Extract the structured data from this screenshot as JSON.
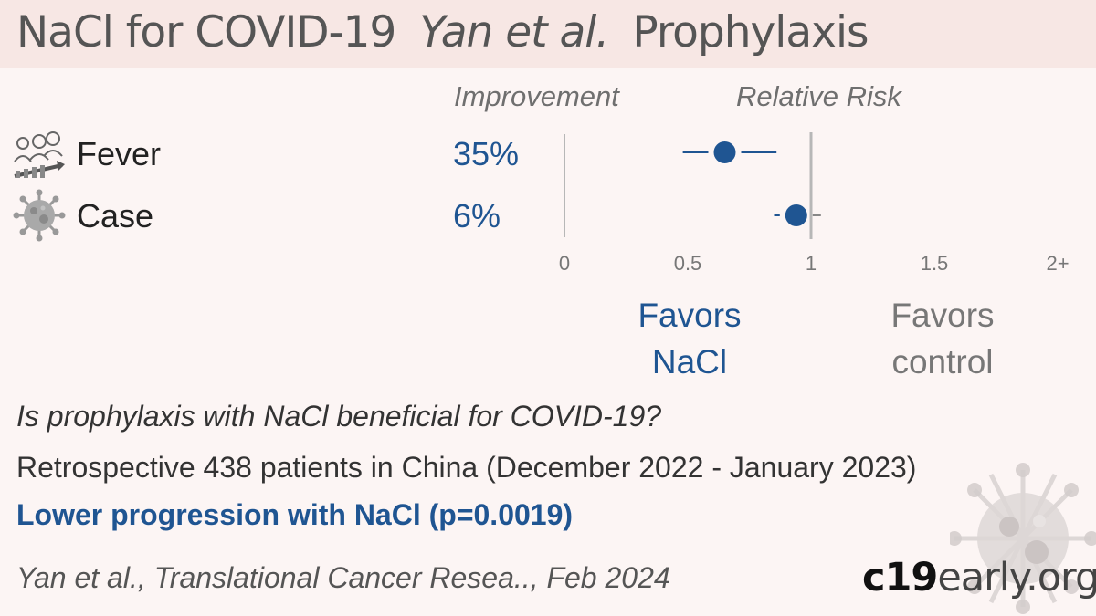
{
  "header": {
    "title": "NaCl for COVID-19",
    "authors": "Yan et al.",
    "setting": "Prophylaxis"
  },
  "columns": {
    "improvement": "Improvement",
    "relative_risk": "Relative Risk"
  },
  "chart_data": {
    "type": "forest",
    "title": "",
    "xlabel": "Relative Risk",
    "xlim": [
      0,
      2
    ],
    "x_ticks": [
      "0",
      "0.5",
      "1",
      "1.5",
      "2+"
    ],
    "tick_values": [
      0,
      0.5,
      1,
      1.5,
      2
    ],
    "reference_line": 1,
    "rows": [
      {
        "label": "Fever",
        "improvement": "35%",
        "rr": 0.65,
        "ci_low": 0.48,
        "ci_high": 0.86
      },
      {
        "label": "Case",
        "improvement": "6%",
        "rr": 0.94,
        "ci_low": 0.85,
        "ci_high": 1.04
      }
    ],
    "colors": {
      "point": "#1f5592",
      "ci": "#1f5592",
      "reference": "#b7b7b7",
      "zero_line": "#b7b7b7"
    }
  },
  "favors": {
    "left_line1": "Favors",
    "left_line2": "NaCl",
    "right_line1": "Favors",
    "right_line2": "control"
  },
  "question": "Is prophylaxis with NaCl beneficial for COVID-19?",
  "study": "Retrospective 438 patients in China (December 2022 - January 2023)",
  "conclusion": "Lower progression with NaCl (p=0.0019)",
  "citation": "Yan et al., Translational Cancer Resea.., Feb 2024",
  "brand": {
    "part1": "c19",
    "part2": "early.org"
  },
  "icons": {
    "fever": "fever-patients-icon",
    "case": "virus-icon",
    "background": "virus-watermark-icon"
  },
  "colors": {
    "accent": "#1f5592",
    "header_bg": "#f7e7e4",
    "page_bg": "#fcf5f4"
  }
}
